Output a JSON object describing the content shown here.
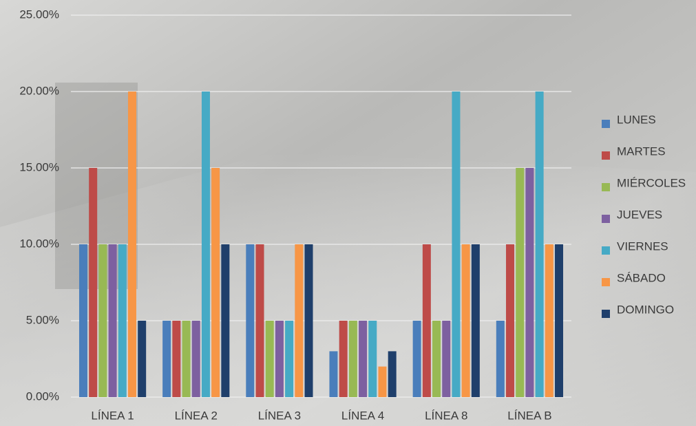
{
  "chart_data": {
    "type": "bar",
    "categories": [
      "LÍNEA 1",
      "LÍNEA 2",
      "LÍNEA 3",
      "LÍNEA 4",
      "LÍNEA 8",
      "LÍNEA B"
    ],
    "series": [
      {
        "name": "LUNES",
        "color": "#4a7ebb",
        "values": [
          10,
          5,
          10,
          3,
          5,
          5
        ]
      },
      {
        "name": "MARTES",
        "color": "#be4b48",
        "values": [
          15,
          5,
          10,
          5,
          10,
          10
        ]
      },
      {
        "name": "MIÉRCOLES",
        "color": "#98b954",
        "values": [
          10,
          5,
          5,
          5,
          5,
          15
        ]
      },
      {
        "name": "JUEVES",
        "color": "#7d60a0",
        "values": [
          10,
          5,
          5,
          5,
          5,
          15
        ]
      },
      {
        "name": "VIERNES",
        "color": "#46aac5",
        "values": [
          10,
          20,
          5,
          5,
          20,
          20
        ]
      },
      {
        "name": "SÁBADO",
        "color": "#f79646",
        "values": [
          20,
          15,
          10,
          2,
          10,
          10
        ]
      },
      {
        "name": "DOMINGO",
        "color": "#1f3f6b",
        "values": [
          5,
          10,
          10,
          3,
          10,
          10
        ]
      }
    ],
    "ylim": [
      0,
      25
    ],
    "yticks": [
      {
        "value": 0,
        "label": "0.00%"
      },
      {
        "value": 5,
        "label": "5.00%"
      },
      {
        "value": 10,
        "label": "10.00%"
      },
      {
        "value": 15,
        "label": "15.00%"
      },
      {
        "value": 20,
        "label": "20.00%"
      },
      {
        "value": 25,
        "label": "25.00%"
      }
    ],
    "grid": true,
    "legend": "right"
  }
}
